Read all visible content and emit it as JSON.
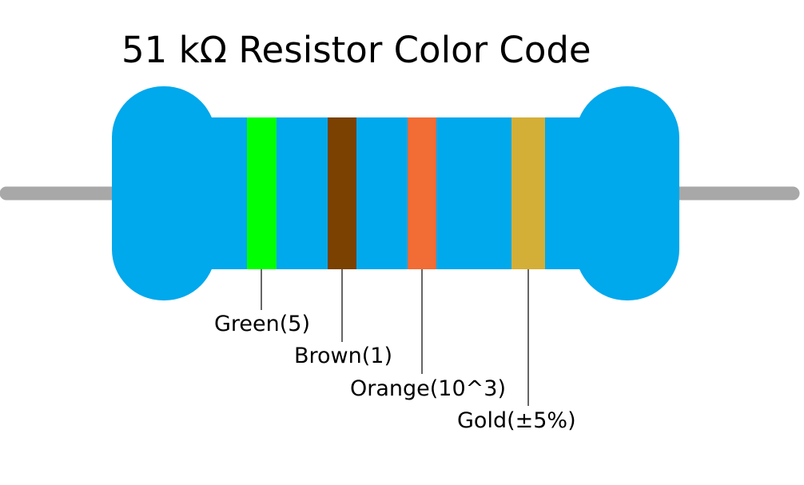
{
  "title": "51 kΩ Resistor Color Code",
  "colors": {
    "body": "#00a8ec",
    "lead": "#a8a8a8"
  },
  "bands": [
    {
      "name": "Green",
      "label": "Green(5)",
      "color": "#00ff00"
    },
    {
      "name": "Brown",
      "label": "Brown(1)",
      "color": "#7a4100"
    },
    {
      "name": "Orange",
      "label": "Orange(10^3)",
      "color": "#f26c35"
    },
    {
      "name": "Gold",
      "label": "Gold(±5%)",
      "color": "#d4af37"
    }
  ]
}
